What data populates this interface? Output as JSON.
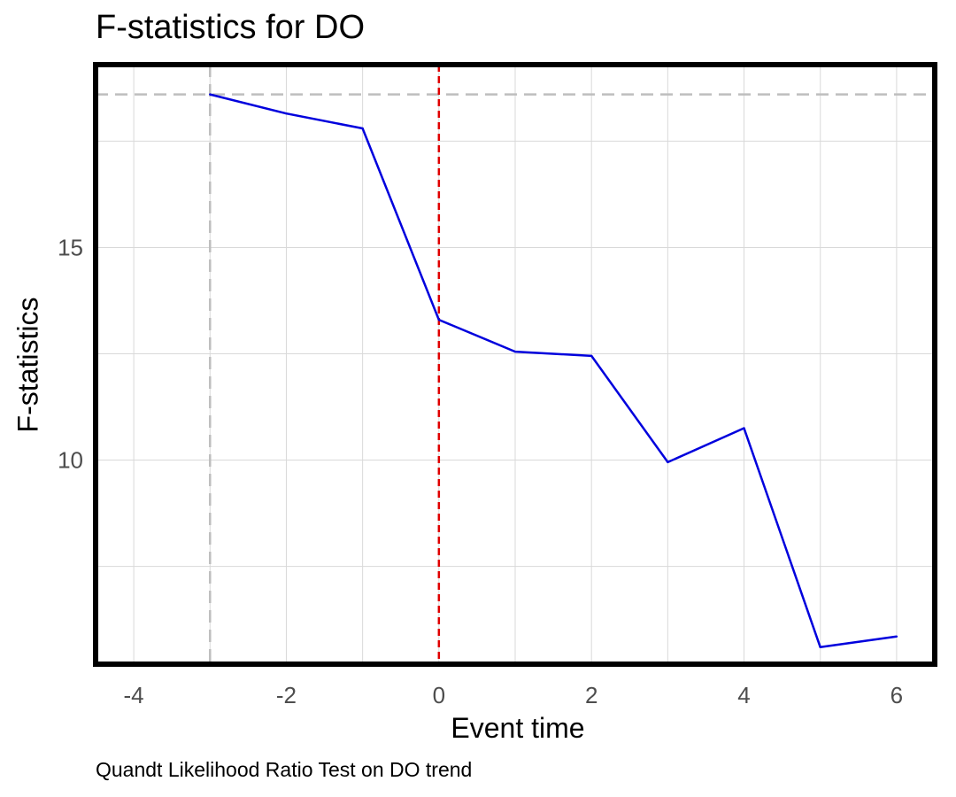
{
  "chart_data": {
    "type": "line",
    "title": "F-statistics for DO",
    "xlabel": "Event time",
    "ylabel": "F-statistics",
    "caption": "Quandt Likelihood Ratio Test on DO trend",
    "x": [
      -3,
      -2,
      -1,
      0,
      1,
      2,
      3,
      4,
      5,
      6
    ],
    "series": [
      {
        "values": [
          18.6,
          18.15,
          17.8,
          13.3,
          12.55,
          12.45,
          9.95,
          10.75,
          5.6,
          5.85
        ]
      }
    ],
    "xlim": [
      -4.5,
      6.5
    ],
    "ylim": [
      5.2,
      19.3
    ],
    "xticks": [
      -4,
      -2,
      0,
      2,
      4,
      6
    ],
    "yticks": [
      10,
      15
    ],
    "xtick_labels": [
      "-4",
      "-2",
      "0",
      "2",
      "4",
      "6"
    ],
    "ytick_labels": [
      "10",
      "15"
    ],
    "grid": true,
    "reference_lines": {
      "event_x": 0,
      "max_x": -3,
      "max_y": 18.6
    },
    "colors": {
      "series": "#0000dd",
      "event_line": "#e00000",
      "reference": "#bebebe",
      "grid": "#d9d9d9",
      "panel_border": "#000000"
    }
  }
}
